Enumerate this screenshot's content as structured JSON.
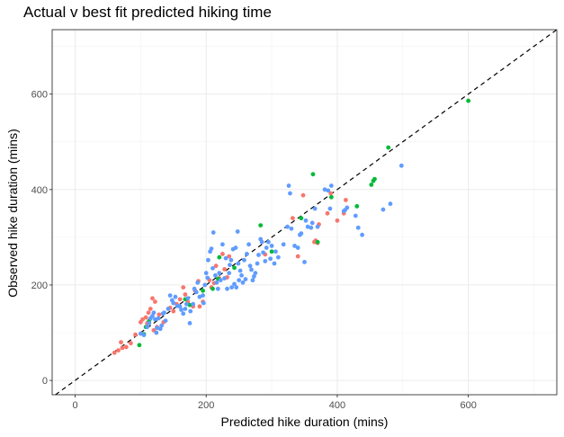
{
  "chart_data": {
    "type": "scatter",
    "title": "Actual v best fit predicted hiking time",
    "xlabel": "Predicted hike duration (mins)",
    "ylabel": "Observed hike duration (mins)",
    "xlim": [
      -35,
      735
    ],
    "ylim": [
      -30,
      735
    ],
    "xticks": [
      0,
      200,
      400,
      600
    ],
    "yticks": [
      0,
      200,
      400,
      600
    ],
    "grid": true,
    "legend": "none",
    "reference_line": {
      "type": "y = x",
      "style": "dashed",
      "color": "#000000"
    },
    "colors": {
      "red": "#F8766D",
      "green": "#00BA38",
      "blue": "#619CFF"
    },
    "series": [
      {
        "name": "red",
        "color": "#F8766D",
        "points": [
          [
            60,
            58
          ],
          [
            66,
            63
          ],
          [
            72,
            68
          ],
          [
            70,
            80
          ],
          [
            78,
            70
          ],
          [
            85,
            78
          ],
          [
            92,
            96
          ],
          [
            100,
            122
          ],
          [
            103,
            128
          ],
          [
            108,
            132
          ],
          [
            110,
            120
          ],
          [
            112,
            142
          ],
          [
            115,
            150
          ],
          [
            118,
            172
          ],
          [
            120,
            105
          ],
          [
            122,
            165
          ],
          [
            125,
            112
          ],
          [
            128,
            138
          ],
          [
            135,
            122
          ],
          [
            145,
            152
          ],
          [
            150,
            145
          ],
          [
            155,
            160
          ],
          [
            160,
            170
          ],
          [
            165,
            195
          ],
          [
            168,
            180
          ],
          [
            172,
            165
          ],
          [
            180,
            155
          ],
          [
            183,
            188
          ],
          [
            188,
            208
          ],
          [
            190,
            155
          ],
          [
            195,
            165
          ],
          [
            205,
            210
          ],
          [
            208,
            195
          ],
          [
            212,
            204
          ],
          [
            215,
            240
          ],
          [
            220,
            214
          ],
          [
            225,
            265
          ],
          [
            228,
            233
          ],
          [
            232,
            216
          ],
          [
            235,
            260
          ],
          [
            290,
            264
          ],
          [
            332,
            340
          ],
          [
            340,
            260
          ],
          [
            348,
            388
          ],
          [
            365,
            290
          ],
          [
            367,
            293
          ],
          [
            370,
            288
          ],
          [
            372,
            327
          ],
          [
            385,
            350
          ],
          [
            390,
            392
          ],
          [
            400,
            335
          ],
          [
            410,
            350
          ],
          [
            413,
            378
          ]
        ]
      },
      {
        "name": "green",
        "color": "#00BA38",
        "points": [
          [
            98,
            74
          ],
          [
            105,
            97
          ],
          [
            108,
            112
          ],
          [
            113,
            125
          ],
          [
            168,
            170
          ],
          [
            175,
            158
          ],
          [
            195,
            188
          ],
          [
            210,
            192
          ],
          [
            218,
            213
          ],
          [
            220,
            258
          ],
          [
            243,
            236
          ],
          [
            283,
            325
          ],
          [
            300,
            270
          ],
          [
            345,
            340
          ],
          [
            363,
            432
          ],
          [
            370,
            290
          ],
          [
            391,
            384
          ],
          [
            430,
            365
          ],
          [
            452,
            410
          ],
          [
            455,
            418
          ],
          [
            457,
            422
          ],
          [
            478,
            488
          ],
          [
            600,
            586
          ]
        ]
      },
      {
        "name": "blue",
        "color": "#619CFF",
        "points": [
          [
            100,
            98
          ],
          [
            105,
            95
          ],
          [
            110,
            112
          ],
          [
            113,
            120
          ],
          [
            115,
            130
          ],
          [
            118,
            135
          ],
          [
            120,
            142
          ],
          [
            122,
            128
          ],
          [
            124,
            100
          ],
          [
            125,
            110
          ],
          [
            127,
            130
          ],
          [
            130,
            108
          ],
          [
            132,
            115
          ],
          [
            134,
            140
          ],
          [
            136,
            142
          ],
          [
            138,
            125
          ],
          [
            142,
            150
          ],
          [
            145,
            178
          ],
          [
            148,
            168
          ],
          [
            150,
            162
          ],
          [
            153,
            175
          ],
          [
            156,
            156
          ],
          [
            160,
            155
          ],
          [
            162,
            148
          ],
          [
            165,
            140
          ],
          [
            168,
            150
          ],
          [
            170,
            160
          ],
          [
            172,
            172
          ],
          [
            175,
            120
          ],
          [
            176,
            145
          ],
          [
            180,
            160
          ],
          [
            182,
            192
          ],
          [
            185,
            185
          ],
          [
            187,
            205
          ],
          [
            190,
            175
          ],
          [
            195,
            178
          ],
          [
            196,
            162
          ],
          [
            198,
            200
          ],
          [
            200,
            225
          ],
          [
            202,
            215
          ],
          [
            203,
            252
          ],
          [
            206,
            270
          ],
          [
            208,
            276
          ],
          [
            210,
            235
          ],
          [
            211,
            310
          ],
          [
            214,
            220
          ],
          [
            216,
            205
          ],
          [
            218,
            192
          ],
          [
            220,
            225
          ],
          [
            222,
            210
          ],
          [
            225,
            285
          ],
          [
            228,
            214
          ],
          [
            230,
            256
          ],
          [
            232,
            192
          ],
          [
            235,
            225
          ],
          [
            236,
            242
          ],
          [
            238,
            252
          ],
          [
            239,
            195
          ],
          [
            241,
            275
          ],
          [
            243,
            202
          ],
          [
            245,
            278
          ],
          [
            246,
            195
          ],
          [
            248,
            312
          ],
          [
            249,
            245
          ],
          [
            250,
            210
          ],
          [
            252,
            230
          ],
          [
            254,
            220
          ],
          [
            256,
            205
          ],
          [
            258,
            252
          ],
          [
            260,
            212
          ],
          [
            262,
            265
          ],
          [
            265,
            285
          ],
          [
            267,
            240
          ],
          [
            269,
            232
          ],
          [
            271,
            210
          ],
          [
            273,
            218
          ],
          [
            275,
            225
          ],
          [
            278,
            245
          ],
          [
            280,
            263
          ],
          [
            283,
            296
          ],
          [
            285,
            290
          ],
          [
            287,
            268
          ],
          [
            290,
            250
          ],
          [
            292,
            278
          ],
          [
            295,
            290
          ],
          [
            298,
            255
          ],
          [
            300,
            282
          ],
          [
            304,
            245
          ],
          [
            306,
            270
          ],
          [
            310,
            258
          ],
          [
            318,
            285
          ],
          [
            324,
            322
          ],
          [
            326,
            408
          ],
          [
            328,
            392
          ],
          [
            330,
            318
          ],
          [
            335,
            282
          ],
          [
            340,
            278
          ],
          [
            343,
            305
          ],
          [
            345,
            308
          ],
          [
            350,
            248
          ],
          [
            352,
            335
          ],
          [
            355,
            322
          ],
          [
            360,
            320
          ],
          [
            362,
            330
          ],
          [
            366,
            360
          ],
          [
            370,
            322
          ],
          [
            381,
            400
          ],
          [
            386,
            398
          ],
          [
            389,
            360
          ],
          [
            391,
            408
          ],
          [
            410,
            355
          ],
          [
            412,
            357
          ],
          [
            415,
            362
          ],
          [
            428,
            345
          ],
          [
            432,
            320
          ],
          [
            438,
            305
          ],
          [
            470,
            358
          ],
          [
            481,
            370
          ],
          [
            498,
            450
          ]
        ]
      }
    ]
  }
}
